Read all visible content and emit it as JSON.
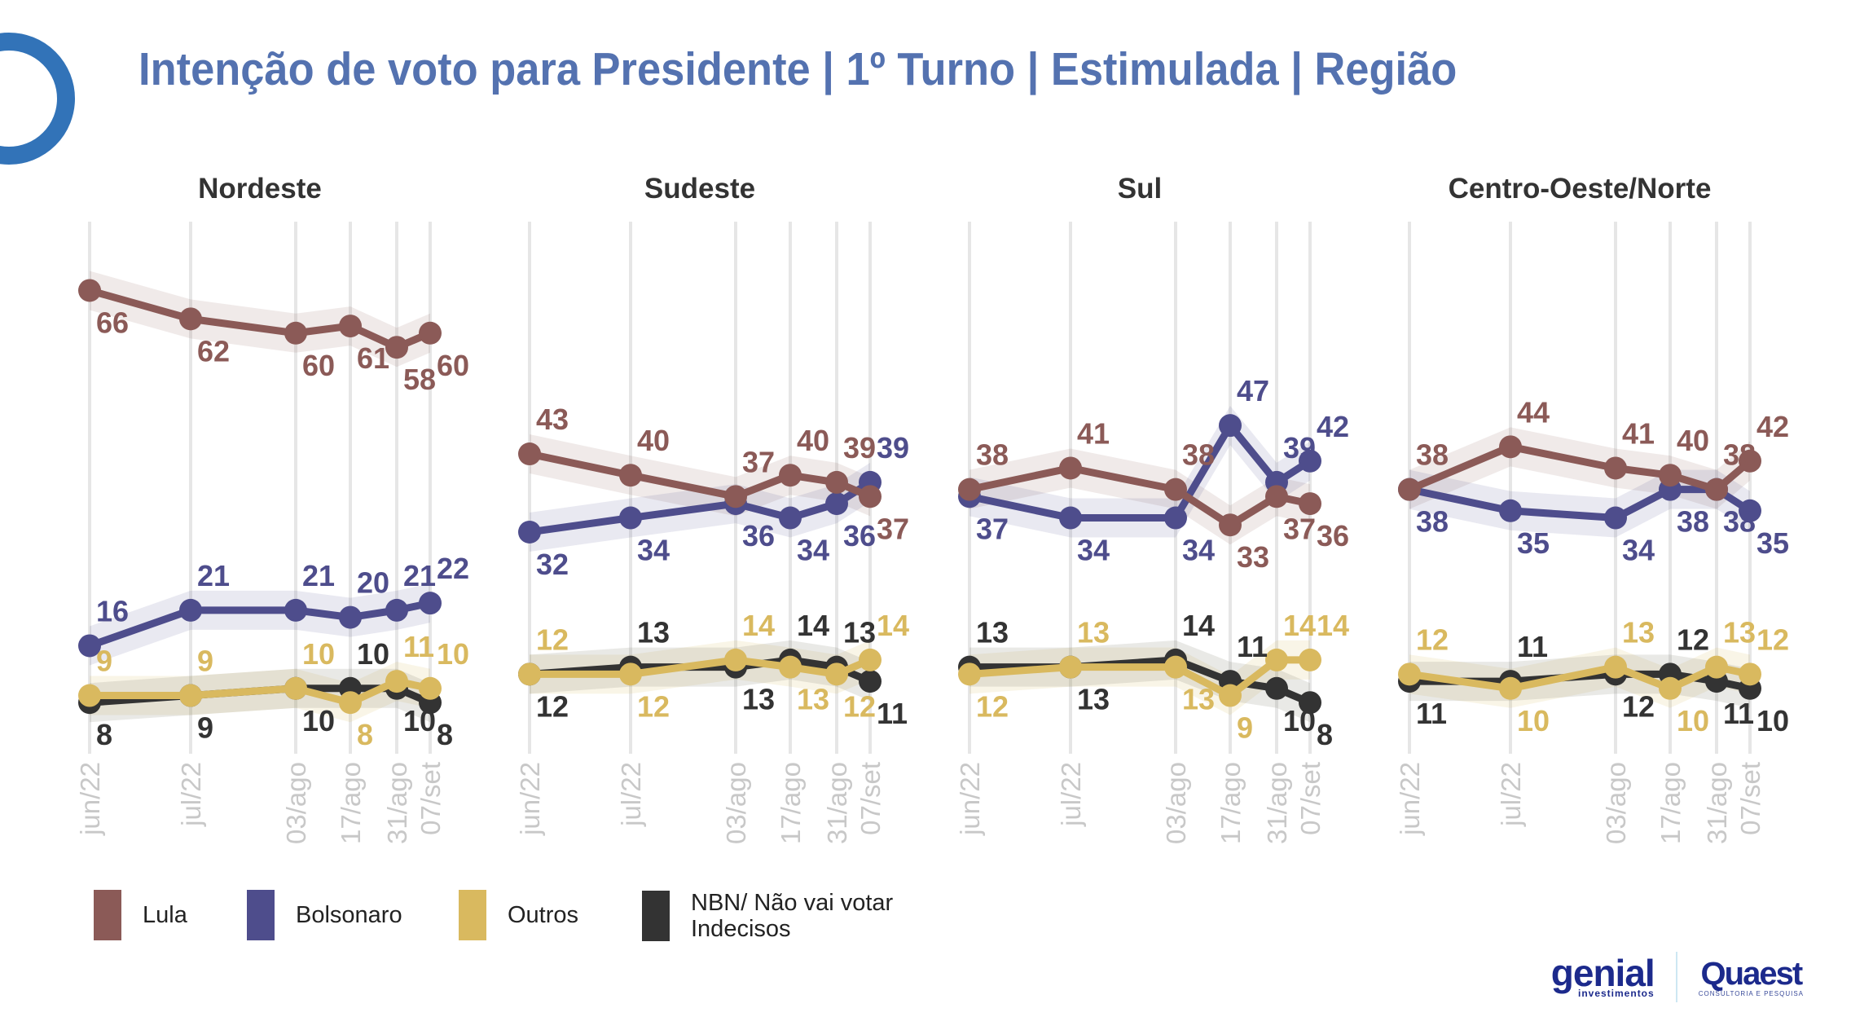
{
  "title": "Intenção de voto para Presidente | 1º Turno | Estimulada | Região",
  "legend": [
    {
      "name": "Lula",
      "color": "#8b5a57"
    },
    {
      "name": "Bolsonaro",
      "color": "#4e4d8c"
    },
    {
      "name": "Outros",
      "color": "#d9b95f"
    },
    {
      "name": "NBN/ Não vai votar\nIndecisos",
      "color": "#333333"
    }
  ],
  "brand": {
    "genial_main": "genial",
    "genial_sub": "investimentos",
    "quaest_main": "Quaest",
    "quaest_sub": "CONSULTORIA E PESQUISA"
  },
  "chart_data": [
    {
      "type": "line",
      "title": "Nordeste",
      "x": [
        "jun/22",
        "jul/22",
        "03/ago",
        "17/ago",
        "31/ago",
        "07/set"
      ],
      "series": [
        {
          "name": "Lula",
          "values": [
            66,
            62,
            60,
            61,
            58,
            60
          ]
        },
        {
          "name": "Bolsonaro",
          "values": [
            16,
            21,
            21,
            20,
            21,
            22
          ]
        },
        {
          "name": "Outros",
          "values": [
            9,
            9,
            10,
            8,
            11,
            10
          ]
        },
        {
          "name": "NBN/ Não vai votar Indecisos",
          "values": [
            8,
            9,
            10,
            10,
            10,
            8
          ]
        }
      ],
      "ylim": [
        0,
        76
      ],
      "grid": "vertical",
      "band": "margin of error"
    },
    {
      "type": "line",
      "title": "Sudeste",
      "x": [
        "jun/22",
        "jul/22",
        "03/ago",
        "17/ago",
        "31/ago",
        "07/set"
      ],
      "series": [
        {
          "name": "Lula",
          "values": [
            43,
            40,
            37,
            40,
            39,
            37
          ]
        },
        {
          "name": "Bolsonaro",
          "values": [
            32,
            34,
            36,
            34,
            36,
            39
          ]
        },
        {
          "name": "Outros",
          "values": [
            12,
            12,
            14,
            13,
            12,
            14
          ]
        },
        {
          "name": "NBN/ Não vai votar Indecisos",
          "values": [
            12,
            13,
            13,
            14,
            13,
            11
          ]
        }
      ],
      "ylim": [
        0,
        76
      ],
      "grid": "vertical",
      "band": "margin of error"
    },
    {
      "type": "line",
      "title": "Sul",
      "x": [
        "jun/22",
        "jul/22",
        "03/ago",
        "17/ago",
        "31/ago",
        "07/set"
      ],
      "series": [
        {
          "name": "Lula",
          "values": [
            38,
            41,
            38,
            33,
            37,
            36
          ]
        },
        {
          "name": "Bolsonaro",
          "values": [
            37,
            34,
            34,
            47,
            39,
            42
          ]
        },
        {
          "name": "Outros",
          "values": [
            12,
            13,
            13,
            9,
            14,
            14
          ]
        },
        {
          "name": "NBN/ Não vai votar Indecisos",
          "values": [
            13,
            13,
            14,
            11,
            10,
            8
          ]
        }
      ],
      "ylim": [
        0,
        76
      ],
      "grid": "vertical",
      "band": "margin of error"
    },
    {
      "type": "line",
      "title": "Centro-Oeste/Norte",
      "x": [
        "jun/22",
        "jul/22",
        "03/ago",
        "17/ago",
        "31/ago",
        "07/set"
      ],
      "series": [
        {
          "name": "Lula",
          "values": [
            38,
            44,
            41,
            40,
            38,
            42
          ]
        },
        {
          "name": "Bolsonaro",
          "values": [
            38,
            35,
            34,
            38,
            38,
            35
          ]
        },
        {
          "name": "Outros",
          "values": [
            12,
            10,
            13,
            10,
            13,
            12
          ]
        },
        {
          "name": "NBN/ Não vai votar Indecisos",
          "values": [
            11,
            11,
            12,
            12,
            11,
            10
          ]
        }
      ],
      "ylim": [
        0,
        76
      ],
      "grid": "vertical",
      "band": "margin of error"
    }
  ]
}
